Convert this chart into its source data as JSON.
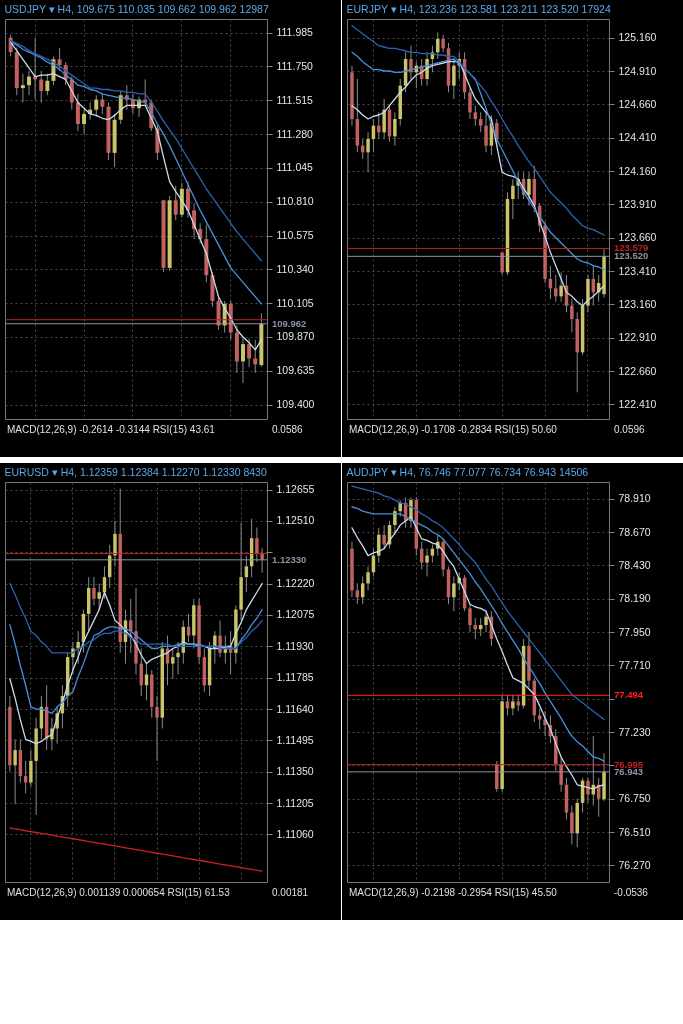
{
  "chart_data": [
    {
      "type": "candlestick",
      "title": "USDJPY ▾ H4, 109.675 110.035 109.662 109.962 12987",
      "grid": true,
      "tick_labels": "y",
      "categories": [
        null,
        null,
        null,
        null,
        null,
        null,
        null,
        null,
        null,
        null,
        null,
        null,
        null,
        null,
        null,
        null,
        null,
        null,
        null,
        null,
        null,
        null,
        null,
        null,
        null,
        null,
        null,
        null,
        null,
        null,
        null,
        null,
        null,
        null,
        null,
        null,
        null,
        null,
        null,
        null,
        null,
        null
      ],
      "ohlc": [
        [
          111.95,
          111.97,
          111.82,
          111.85
        ],
        [
          111.85,
          111.88,
          111.55,
          111.6
        ],
        [
          111.6,
          111.7,
          111.5,
          111.62
        ],
        [
          111.62,
          111.72,
          111.55,
          111.68
        ],
        [
          111.68,
          111.95,
          111.52,
          111.66
        ],
        [
          111.66,
          111.72,
          111.5,
          111.58
        ],
        [
          111.58,
          111.7,
          111.55,
          111.65
        ],
        [
          111.65,
          111.82,
          111.62,
          111.8
        ],
        [
          111.8,
          111.88,
          111.72,
          111.76
        ],
        [
          111.76,
          111.78,
          111.62,
          111.66
        ],
        [
          111.66,
          111.68,
          111.45,
          111.5
        ],
        [
          111.5,
          111.56,
          111.3,
          111.35
        ],
        [
          111.35,
          111.45,
          111.28,
          111.42
        ],
        [
          111.42,
          111.5,
          111.38,
          111.45
        ],
        [
          111.45,
          111.55,
          111.4,
          111.52
        ],
        [
          111.52,
          111.56,
          111.42,
          111.47
        ],
        [
          111.47,
          111.5,
          111.1,
          111.15
        ],
        [
          111.15,
          111.42,
          111.05,
          111.38
        ],
        [
          111.38,
          111.58,
          111.35,
          111.55
        ],
        [
          111.55,
          111.62,
          111.45,
          111.52
        ],
        [
          111.52,
          111.56,
          111.42,
          111.46
        ],
        [
          111.46,
          111.54,
          111.4,
          111.52
        ],
        [
          111.52,
          111.66,
          111.48,
          111.5
        ],
        [
          111.5,
          111.52,
          111.3,
          111.32
        ],
        [
          111.32,
          111.35,
          111.1,
          111.15
        ],
        [
          110.82,
          110.82,
          110.32,
          110.35
        ],
        [
          110.35,
          110.85,
          110.33,
          110.82
        ],
        [
          110.82,
          110.92,
          110.68,
          110.72
        ],
        [
          110.72,
          110.94,
          110.7,
          110.9
        ],
        [
          110.9,
          110.95,
          110.7,
          110.75
        ],
        [
          110.75,
          110.8,
          110.55,
          110.62
        ],
        [
          110.62,
          110.66,
          110.52,
          110.55
        ],
        [
          110.55,
          110.65,
          110.25,
          110.3
        ],
        [
          110.3,
          110.32,
          110.08,
          110.12
        ],
        [
          110.12,
          110.15,
          109.92,
          109.95
        ],
        [
          109.95,
          110.12,
          109.9,
          110.1
        ],
        [
          110.1,
          110.12,
          109.85,
          109.9
        ],
        [
          109.9,
          109.95,
          109.62,
          109.7
        ],
        [
          109.7,
          109.86,
          109.55,
          109.82
        ],
        [
          109.82,
          109.86,
          109.66,
          109.72
        ],
        [
          109.72,
          109.85,
          109.62,
          109.68
        ],
        [
          109.675,
          110.035,
          109.662,
          109.962
        ]
      ],
      "ylim": [
        109.3,
        112.08
      ],
      "yticks": [
        {
          "value": 111.985,
          "label": "111.985"
        },
        {
          "value": 111.75,
          "label": "111.750"
        },
        {
          "value": 111.515,
          "label": "111.515"
        },
        {
          "value": 111.28,
          "label": "111.280"
        },
        {
          "value": 111.045,
          "label": "111.045"
        },
        {
          "value": 110.81,
          "label": "110.810"
        },
        {
          "value": 110.575,
          "label": "110.575"
        },
        {
          "value": 110.34,
          "label": "110.340"
        },
        {
          "value": 110.105,
          "label": "110.105"
        },
        {
          "value": 109.87,
          "label": "109.870"
        },
        {
          "value": 109.635,
          "label": "109.635"
        },
        {
          "value": 109.4,
          "label": "109.400"
        }
      ],
      "series": [
        {
          "type": "line",
          "color": "#c6dcee",
          "values": [
            111.92,
            111.86,
            111.8,
            111.74,
            111.68,
            111.69,
            111.69,
            111.7,
            111.68,
            111.66,
            111.58,
            111.5,
            111.46,
            111.42,
            111.41,
            111.39,
            111.38,
            111.41,
            111.45,
            111.48,
            111.48,
            111.48,
            111.48,
            111.39,
            111.3,
            111.12,
            110.95,
            110.88,
            110.82,
            110.75,
            110.65,
            110.55,
            110.45,
            110.3,
            110.15,
            110.07,
            110,
            109.92,
            109.87,
            109.83,
            109.78,
            109.85
          ]
        },
        {
          "type": "line",
          "color": "#4a90d9",
          "values": [
            111.92,
            111.9,
            111.87,
            111.85,
            111.83,
            111.81,
            111.78,
            111.76,
            111.73,
            111.69,
            111.66,
            111.62,
            111.61,
            111.59,
            111.58,
            111.56,
            111.55,
            111.54,
            111.53,
            111.53,
            111.52,
            111.51,
            111.5,
            111.43,
            111.35,
            111.28,
            111.2,
            111.11,
            111.02,
            110.93,
            110.84,
            110.75,
            110.67,
            110.59,
            110.51,
            110.43,
            110.35,
            110.3,
            110.25,
            110.2,
            110.15,
            110.1
          ]
        },
        {
          "type": "line",
          "color": "#2a64b0",
          "values": [
            111.93,
            111.91,
            111.89,
            111.86,
            111.84,
            111.82,
            111.8,
            111.78,
            111.75,
            111.72,
            111.69,
            111.66,
            111.63,
            111.6,
            111.6,
            111.59,
            111.59,
            111.58,
            111.58,
            111.57,
            111.57,
            111.56,
            111.56,
            111.5,
            111.44,
            111.37,
            111.31,
            111.25,
            111.18,
            111.11,
            111.04,
            110.97,
            110.9,
            110.84,
            110.78,
            110.72,
            110.66,
            110.6,
            110.55,
            110.5,
            110.45,
            110.4
          ]
        }
      ],
      "ref_lines": [
        {
          "axis": "y",
          "value": 109.99,
          "label": null,
          "color": "#c02020"
        },
        {
          "axis": "y",
          "value": 109.962,
          "label": "109.962",
          "color": "#8a94a6"
        }
      ],
      "annotations": [
        "MACD(12,26,9) -0.2614 -0.3144 RSI(15) 43.61",
        "0.0586"
      ]
    },
    {
      "type": "candlestick",
      "title": "EURJPY ▾ H4, 123.236 123.581 123.211 123.520 17924",
      "grid": true,
      "tick_labels": "y",
      "categories": [
        null,
        null,
        null,
        null,
        null,
        null,
        null,
        null,
        null,
        null,
        null,
        null,
        null,
        null,
        null,
        null,
        null,
        null,
        null,
        null,
        null,
        null,
        null,
        null,
        null,
        null,
        null,
        null,
        null,
        null,
        null,
        null,
        null,
        null,
        null,
        null,
        null,
        null,
        null,
        null,
        null,
        null,
        null,
        null,
        null,
        null,
        null,
        null
      ],
      "ohlc": [
        [
          124.9,
          124.95,
          124.5,
          124.55
        ],
        [
          124.55,
          124.85,
          124.3,
          124.35
        ],
        [
          124.35,
          124.4,
          124.25,
          124.3
        ],
        [
          124.3,
          124.45,
          124.15,
          124.4
        ],
        [
          124.4,
          124.55,
          124.3,
          124.5
        ],
        [
          124.5,
          124.6,
          124.4,
          124.45
        ],
        [
          124.45,
          124.7,
          124.4,
          124.62
        ],
        [
          124.62,
          124.65,
          124.38,
          124.42
        ],
        [
          124.42,
          124.6,
          124.35,
          124.55
        ],
        [
          124.55,
          124.85,
          124.5,
          124.8
        ],
        [
          124.8,
          125.05,
          124.75,
          125
        ],
        [
          125,
          125.1,
          124.85,
          124.9
        ],
        [
          124.9,
          124.98,
          124.78,
          124.95
        ],
        [
          124.95,
          125,
          124.8,
          124.85
        ],
        [
          124.85,
          125.05,
          124.8,
          125
        ],
        [
          125,
          125.1,
          124.9,
          125.05
        ],
        [
          125.05,
          125.2,
          125,
          125.15
        ],
        [
          125.15,
          125.18,
          125.05,
          125.08
        ],
        [
          125.08,
          125.12,
          124.75,
          124.8
        ],
        [
          124.8,
          125,
          124.7,
          124.95
        ],
        [
          124.95,
          125.05,
          124.85,
          125
        ],
        [
          125,
          125.05,
          124.7,
          124.75
        ],
        [
          124.75,
          124.78,
          124.55,
          124.6
        ],
        [
          124.6,
          124.65,
          124.5,
          124.55
        ],
        [
          124.55,
          124.6,
          124.45,
          124.5
        ],
        [
          124.5,
          124.6,
          124.3,
          124.35
        ],
        [
          124.35,
          124.58,
          124.28,
          124.52
        ],
        [
          124.52,
          124.55,
          124.35,
          124.4
        ],
        [
          123.55,
          123.55,
          123.38,
          123.4
        ],
        [
          123.4,
          124,
          123.38,
          123.95
        ],
        [
          123.95,
          124.1,
          123.8,
          124.05
        ],
        [
          124.05,
          124.15,
          123.95,
          124.1
        ],
        [
          124.1,
          124.15,
          123.95,
          123.98
        ],
        [
          123.98,
          124.15,
          123.9,
          124.1
        ],
        [
          124.1,
          124.2,
          123.85,
          123.9
        ],
        [
          123.9,
          123.92,
          123.7,
          123.75
        ],
        [
          123.75,
          123.78,
          123.32,
          123.35
        ],
        [
          123.35,
          123.45,
          123.2,
          123.28
        ],
        [
          123.28,
          123.38,
          123.18,
          123.22
        ],
        [
          123.22,
          123.4,
          123.18,
          123.3
        ],
        [
          123.3,
          123.38,
          123.1,
          123.15
        ],
        [
          123.15,
          123.2,
          122.95,
          123.05
        ],
        [
          123.05,
          123.1,
          122.5,
          122.8
        ],
        [
          122.8,
          123.2,
          122.78,
          123.15
        ],
        [
          123.15,
          123.38,
          123.1,
          123.35
        ],
        [
          123.35,
          123.45,
          123.15,
          123.25
        ],
        [
          123.25,
          123.38,
          123.18,
          123.32
        ],
        [
          123.236,
          123.581,
          123.211,
          123.52
        ]
      ],
      "ylim": [
        122.3,
        125.3
      ],
      "yticks": [
        {
          "value": 125.16,
          "label": "125.160"
        },
        {
          "value": 124.91,
          "label": "124.910"
        },
        {
          "value": 124.66,
          "label": "124.660"
        },
        {
          "value": 124.41,
          "label": "124.410"
        },
        {
          "value": 124.16,
          "label": "124.160"
        },
        {
          "value": 123.91,
          "label": "123.910"
        },
        {
          "value": 123.66,
          "label": "123.660"
        },
        {
          "value": 123.41,
          "label": "123.410"
        },
        {
          "value": 123.16,
          "label": "123.160"
        },
        {
          "value": 122.91,
          "label": "122.910"
        },
        {
          "value": 122.66,
          "label": "122.660"
        },
        {
          "value": 122.41,
          "label": "122.410"
        }
      ],
      "series": [
        {
          "type": "line",
          "color": "#c6dcee",
          "values": [
            124.65,
            124.62,
            124.58,
            124.55,
            124.57,
            124.58,
            124.6,
            124.65,
            124.7,
            124.75,
            124.79,
            124.84,
            124.88,
            124.9,
            124.93,
            124.95,
            124.96,
            124.97,
            124.98,
            124.98,
            124.98,
            124.89,
            124.79,
            124.7,
            124.65,
            124.6,
            124.55,
            124.35,
            124.15,
            124.13,
            124.12,
            124.1,
            124.03,
            123.97,
            123.9,
            123.78,
            123.67,
            123.55,
            123.45,
            123.35,
            123.25,
            123.22,
            123.18,
            123.15,
            123.19,
            123.22,
            123.26,
            123.3
          ]
        },
        {
          "type": "line",
          "color": "#4a90d9",
          "values": [
            125.05,
            125.02,
            124.98,
            124.95,
            124.92,
            124.92,
            124.91,
            124.91,
            124.9,
            124.9,
            124.91,
            124.92,
            124.93,
            124.94,
            124.95,
            124.96,
            124.97,
            124.98,
            124.99,
            125,
            124.96,
            124.93,
            124.89,
            124.85,
            124.74,
            124.63,
            124.51,
            124.4,
            124.32,
            124.24,
            124.16,
            124.08,
            124,
            123.94,
            123.88,
            123.82,
            123.76,
            123.7,
            123.66,
            123.62,
            123.58,
            123.54,
            123.5,
            123.48,
            123.47,
            123.45,
            123.44,
            123.42
          ]
        },
        {
          "type": "line",
          "color": "#2a64b0",
          "values": [
            125.25,
            125.22,
            125.19,
            125.16,
            125.13,
            125.1,
            125.09,
            125.08,
            125.08,
            125.07,
            125.06,
            125.05,
            125.05,
            125.04,
            125.04,
            125.04,
            125.03,
            125.03,
            125.02,
            125.02,
            124.98,
            124.93,
            124.89,
            124.84,
            124.8,
            124.75,
            124.68,
            124.62,
            124.55,
            124.48,
            124.42,
            124.35,
            124.29,
            124.23,
            124.18,
            124.12,
            124.06,
            124,
            123.96,
            123.92,
            123.88,
            123.83,
            123.79,
            123.75,
            123.73,
            123.72,
            123.7,
            123.68
          ]
        }
      ],
      "ref_lines": [
        {
          "axis": "y",
          "value": 123.579,
          "label": "123.579",
          "color": "#c02020"
        },
        {
          "axis": "y",
          "value": 123.52,
          "label": "123.520",
          "color": "#8a94a6"
        }
      ],
      "annotations": [
        "MACD(12,26,9) -0.1708 -0.2834 RSI(15) 50.60",
        "0.0596"
      ]
    },
    {
      "type": "candlestick",
      "title": "EURUSD ▾ H4, 1.12359 1.12384 1.12270 1.12330 8430",
      "grid": true,
      "tick_labels": "y",
      "categories": [
        null,
        null,
        null,
        null,
        null,
        null,
        null,
        null,
        null,
        null,
        null,
        null,
        null,
        null,
        null,
        null,
        null,
        null,
        null,
        null,
        null,
        null,
        null,
        null,
        null,
        null,
        null,
        null,
        null,
        null,
        null,
        null,
        null,
        null,
        null,
        null,
        null,
        null,
        null,
        null,
        null,
        null,
        null,
        null,
        null,
        null,
        null,
        null,
        null
      ],
      "ohlc": [
        [
          1.1165,
          1.117,
          1.1135,
          1.1138
        ],
        [
          1.1138,
          1.115,
          1.112,
          1.1145
        ],
        [
          1.1145,
          1.115,
          1.113,
          1.1133
        ],
        [
          1.1133,
          1.114,
          1.1125,
          1.113
        ],
        [
          1.113,
          1.1145,
          1.1128,
          1.114
        ],
        [
          1.114,
          1.116,
          1.1115,
          1.1155
        ],
        [
          1.1155,
          1.117,
          1.115,
          1.1165
        ],
        [
          1.1165,
          1.1175,
          1.1145,
          1.115
        ],
        [
          1.115,
          1.116,
          1.1145,
          1.1155
        ],
        [
          1.1155,
          1.1165,
          1.1148,
          1.1162
        ],
        [
          1.1162,
          1.1175,
          1.1155,
          1.117
        ],
        [
          1.117,
          1.119,
          1.1165,
          1.1188
        ],
        [
          1.1188,
          1.1195,
          1.118,
          1.1192
        ],
        [
          1.1192,
          1.12,
          1.1185,
          1.1195
        ],
        [
          1.1195,
          1.121,
          1.119,
          1.1208
        ],
        [
          1.1208,
          1.1225,
          1.12,
          1.122
        ],
        [
          1.122,
          1.1225,
          1.1212,
          1.1215
        ],
        [
          1.1215,
          1.1222,
          1.121,
          1.1218
        ],
        [
          1.1218,
          1.123,
          1.1215,
          1.1225
        ],
        [
          1.1225,
          1.124,
          1.122,
          1.1235
        ],
        [
          1.1235,
          1.1251,
          1.123,
          1.1245
        ],
        [
          1.1245,
          1.1266,
          1.119,
          1.1195
        ],
        [
          1.1195,
          1.121,
          1.1185,
          1.1205
        ],
        [
          1.1205,
          1.1215,
          1.119,
          1.12
        ],
        [
          1.12,
          1.122,
          1.118,
          1.1185
        ],
        [
          1.1185,
          1.1192,
          1.117,
          1.1175
        ],
        [
          1.1175,
          1.1185,
          1.1168,
          1.118
        ],
        [
          1.118,
          1.1182,
          1.116,
          1.1165
        ],
        [
          1.1165,
          1.117,
          1.114,
          1.116
        ],
        [
          1.116,
          1.1195,
          1.1155,
          1.1192
        ],
        [
          1.1192,
          1.1198,
          1.1175,
          1.1185
        ],
        [
          1.1185,
          1.1192,
          1.1178,
          1.1188
        ],
        [
          1.1188,
          1.1195,
          1.118,
          1.119
        ],
        [
          1.119,
          1.1205,
          1.1185,
          1.1202
        ],
        [
          1.1202,
          1.1208,
          1.1195,
          1.1198
        ],
        [
          1.1198,
          1.1215,
          1.1192,
          1.1212
        ],
        [
          1.1212,
          1.1215,
          1.1185,
          1.1188
        ],
        [
          1.1188,
          1.1192,
          1.1172,
          1.1175
        ],
        [
          1.1175,
          1.1195,
          1.117,
          1.1192
        ],
        [
          1.1192,
          1.12,
          1.1185,
          1.1198
        ],
        [
          1.1198,
          1.1205,
          1.1188,
          1.119
        ],
        [
          1.119,
          1.1198,
          1.1185,
          1.1193
        ],
        [
          1.1193,
          1.12,
          1.118,
          1.119
        ],
        [
          1.119,
          1.1212,
          1.1185,
          1.121
        ],
        [
          1.121,
          1.125,
          1.1205,
          1.1225
        ],
        [
          1.1225,
          1.1235,
          1.1218,
          1.123
        ],
        [
          1.123,
          1.1252,
          1.1225,
          1.1243
        ],
        [
          1.1243,
          1.1248,
          1.1232,
          1.12359
        ],
        [
          1.12359,
          1.12384,
          1.1227,
          1.1233
        ]
      ],
      "ylim": [
        1.1084,
        1.1269
      ],
      "yticks": [
        {
          "value": 1.12655,
          "label": "1.12655"
        },
        {
          "value": 1.1251,
          "label": "1.12510"
        },
        {
          "value": 1.12365,
          "label": null
        },
        {
          "value": 1.1222,
          "label": "1.12220"
        },
        {
          "value": 1.12075,
          "label": "1.12075"
        },
        {
          "value": 1.1193,
          "label": "1.11930"
        },
        {
          "value": 1.11785,
          "label": "1.11785"
        },
        {
          "value": 1.1164,
          "label": "1.11640"
        },
        {
          "value": 1.11495,
          "label": "1.11495"
        },
        {
          "value": 1.1135,
          "label": "1.11350"
        },
        {
          "value": 1.11205,
          "label": "1.11205"
        },
        {
          "value": 1.1106,
          "label": "1.11060"
        }
      ],
      "series": [
        {
          "type": "line",
          "color": "#c6dcee",
          "values": [
            1.1178,
            1.1169,
            1.1159,
            1.115,
            1.1149,
            1.1148,
            1.1149,
            1.1151,
            1.1152,
            1.116,
            1.1167,
            1.1175,
            1.1182,
            1.1188,
            1.1195,
            1.12,
            1.1205,
            1.121,
            1.1218,
            1.1212,
            1.1205,
            1.1203,
            1.12,
            1.1198,
            1.1194,
            1.1189,
            1.1185,
            1.1187,
            1.1188,
            1.1189,
            1.119,
            1.1192,
            1.1193,
            1.1195,
            1.1194,
            1.1194,
            1.1193,
            1.1193,
            1.1192,
            1.1192,
            1.1192,
            1.1193,
            1.1193,
            1.1199,
            1.1204,
            1.121,
            1.1214,
            1.1218,
            1.1222
          ]
        },
        {
          "type": "line",
          "color": "#4a90d9",
          "values": [
            1.1203,
            1.1194,
            1.1184,
            1.1175,
            1.1165,
            1.1164,
            1.1164,
            1.1163,
            1.1162,
            1.1165,
            1.1167,
            1.117,
            1.1172,
            1.1179,
            1.1185,
            1.1192,
            1.1198,
            1.1199,
            1.1201,
            1.1202,
            1.1202,
            1.1201,
            1.1201,
            1.12,
            1.1198,
            1.1196,
            1.1194,
            1.1192,
            1.1192,
            1.1193,
            1.1193,
            1.1193,
            1.1194,
            1.1194,
            1.1194,
            1.1194,
            1.1194,
            1.1193,
            1.1193,
            1.1193,
            1.1193,
            1.1193,
            1.1192,
            1.1192,
            1.1196,
            1.1199,
            1.1203,
            1.1206,
            1.121
          ]
        },
        {
          "type": "line",
          "color": "#2a64b0",
          "values": [
            1.1222,
            1.1217,
            1.1211,
            1.1206,
            1.12,
            1.1198,
            1.1195,
            1.1193,
            1.119,
            1.119,
            1.119,
            1.119,
            1.119,
            1.1192,
            1.1193,
            1.1195,
            1.1196,
            1.1198,
            1.1199,
            1.1199,
            1.12,
            1.12,
            1.1199,
            1.1197,
            1.1196,
            1.1194,
            1.1194,
            1.1194,
            1.1194,
            1.1194,
            1.1194,
            1.1193,
            1.1193,
            1.1193,
            1.1193,
            1.1193,
            1.1193,
            1.1193,
            1.1193,
            1.1193,
            1.1192,
            1.1192,
            1.1192,
            1.1192,
            1.1195,
            1.1197,
            1.12,
            1.1202,
            1.1205
          ]
        },
        {
          "type": "line",
          "color": "#d02020",
          "values": [
            1.1109,
            1.11086,
            1.11082,
            1.11077,
            1.11073,
            1.11069,
            1.11065,
            1.11061,
            1.11057,
            1.11052,
            1.11048,
            1.11044,
            1.1104,
            1.11036,
            1.11032,
            1.11027,
            1.11023,
            1.11019,
            1.11015,
            1.11011,
            1.11007,
            1.11002,
            1.10998,
            1.10994,
            1.1099,
            1.10986,
            1.10982,
            1.10977,
            1.10973,
            1.10969,
            1.10965,
            1.10961,
            1.10957,
            1.10952,
            1.10948,
            1.10944,
            1.1094,
            1.10936,
            1.10932,
            1.10927,
            1.10923,
            1.10919,
            1.10915,
            1.10911,
            1.10907,
            1.10902,
            1.10898,
            1.10894,
            1.1089
          ]
        }
      ],
      "ref_lines": [
        {
          "axis": "y",
          "value": 1.12359,
          "label": null,
          "color": "#c02020"
        },
        {
          "axis": "y",
          "value": 1.1233,
          "label": "1.12330",
          "color": "#8a94a6"
        }
      ],
      "annotations": [
        "MACD(12,26,9) 0.001139 0.000654 RSI(15) 61.53",
        "0.00181"
      ]
    },
    {
      "type": "candlestick",
      "title": "AUDJPY ▾ H4, 76.746 77.077 76.734 76.943 14506",
      "grid": true,
      "tick_labels": "y",
      "categories": [
        null,
        null,
        null,
        null,
        null,
        null,
        null,
        null,
        null,
        null,
        null,
        null,
        null,
        null,
        null,
        null,
        null,
        null,
        null,
        null,
        null,
        null,
        null,
        null,
        null,
        null,
        null,
        null,
        null,
        null,
        null,
        null,
        null,
        null,
        null,
        null,
        null,
        null,
        null,
        null,
        null,
        null,
        null,
        null,
        null,
        null,
        null,
        null
      ],
      "ohlc": [
        [
          78.55,
          78.6,
          78.2,
          78.25
        ],
        [
          78.25,
          78.3,
          78.15,
          78.2
        ],
        [
          78.2,
          78.35,
          78.15,
          78.3
        ],
        [
          78.3,
          78.42,
          78.25,
          78.38
        ],
        [
          78.38,
          78.55,
          78.35,
          78.5
        ],
        [
          78.5,
          78.7,
          78.45,
          78.65
        ],
        [
          78.65,
          78.72,
          78.55,
          78.58
        ],
        [
          78.58,
          78.75,
          78.55,
          78.72
        ],
        [
          78.72,
          78.85,
          78.65,
          78.82
        ],
        [
          78.82,
          78.9,
          78.78,
          78.88
        ],
        [
          78.88,
          78.92,
          78.7,
          78.75
        ],
        [
          78.75,
          78.92,
          78.7,
          78.9
        ],
        [
          78.9,
          78.92,
          78.5,
          78.55
        ],
        [
          78.55,
          78.6,
          78.4,
          78.45
        ],
        [
          78.45,
          78.55,
          78.35,
          78.5
        ],
        [
          78.5,
          78.58,
          78.45,
          78.55
        ],
        [
          78.55,
          78.65,
          78.5,
          78.6
        ],
        [
          78.6,
          78.62,
          78.35,
          78.4
        ],
        [
          78.4,
          78.42,
          78.15,
          78.2
        ],
        [
          78.2,
          78.35,
          78.1,
          78.3
        ],
        [
          78.3,
          78.38,
          78.25,
          78.34
        ],
        [
          78.34,
          78.36,
          78.1,
          78.12
        ],
        [
          78.12,
          78.15,
          77.95,
          78
        ],
        [
          78,
          78.05,
          77.9,
          77.97
        ],
        [
          77.97,
          78.05,
          77.92,
          78
        ],
        [
          78,
          78.1,
          77.95,
          78.06
        ],
        [
          78.06,
          78.1,
          77.85,
          77.9
        ],
        [
          77,
          77.02,
          76.8,
          76.82
        ],
        [
          76.82,
          77.5,
          76.8,
          77.45
        ],
        [
          77.45,
          77.5,
          77.35,
          77.4
        ],
        [
          77.4,
          77.5,
          77.35,
          77.45
        ],
        [
          77.45,
          77.5,
          77.38,
          77.42
        ],
        [
          77.42,
          77.9,
          77.4,
          77.85
        ],
        [
          77.85,
          77.95,
          77.55,
          77.6
        ],
        [
          77.6,
          77.62,
          77.3,
          77.35
        ],
        [
          77.35,
          77.4,
          77.25,
          77.32
        ],
        [
          77.32,
          77.38,
          77.2,
          77.28
        ],
        [
          77.28,
          77.35,
          77.15,
          77.2
        ],
        [
          77.2,
          77.25,
          76.95,
          77
        ],
        [
          77,
          77.05,
          76.8,
          76.85
        ],
        [
          76.85,
          76.9,
          76.6,
          76.65
        ],
        [
          76.65,
          76.7,
          76.42,
          76.5
        ],
        [
          76.5,
          76.75,
          76.4,
          76.72
        ],
        [
          76.72,
          76.9,
          76.65,
          76.88
        ],
        [
          76.88,
          76.9,
          76.72,
          76.78
        ],
        [
          76.78,
          77.2,
          76.7,
          76.85
        ],
        [
          76.85,
          76.9,
          76.62,
          76.75
        ],
        [
          76.746,
          77.077,
          76.734,
          76.943
        ]
      ],
      "ylim": [
        76.15,
        79.03
      ],
      "yticks": [
        {
          "value": 78.91,
          "label": "78.910"
        },
        {
          "value": 78.67,
          "label": "78.670"
        },
        {
          "value": 78.43,
          "label": "78.430"
        },
        {
          "value": 78.19,
          "label": "78.190"
        },
        {
          "value": 77.95,
          "label": "77.950"
        },
        {
          "value": 77.71,
          "label": "77.710"
        },
        {
          "value": 77.47,
          "label": null
        },
        {
          "value": 77.23,
          "label": "77.230"
        },
        {
          "value": 76.99,
          "label": null
        },
        {
          "value": 76.75,
          "label": "76.750"
        },
        {
          "value": 76.51,
          "label": "76.510"
        },
        {
          "value": 76.27,
          "label": "76.270"
        }
      ],
      "series": [
        {
          "type": "line",
          "color": "#c6dcee",
          "values": [
            78.7,
            78.63,
            78.57,
            78.5,
            78.52,
            78.53,
            78.55,
            78.61,
            78.66,
            78.72,
            78.75,
            78.78,
            78.7,
            78.62,
            78.61,
            78.59,
            78.58,
            78.53,
            78.47,
            78.42,
            78.33,
            78.24,
            78.15,
            78.13,
            78.12,
            78.1,
            78,
            77.9,
            77.81,
            77.71,
            77.62,
            77.6,
            77.58,
            77.54,
            77.5,
            77.42,
            77.33,
            77.25,
            77.15,
            77.05,
            76.98,
            76.92,
            76.85,
            76.84,
            76.83,
            76.82,
            76.84,
            76.85
          ]
        },
        {
          "type": "line",
          "color": "#4a90d9",
          "values": [
            78.85,
            78.84,
            78.82,
            78.81,
            78.8,
            78.8,
            78.8,
            78.8,
            78.8,
            78.8,
            78.78,
            78.76,
            78.74,
            78.72,
            78.7,
            78.67,
            78.65,
            78.62,
            78.57,
            78.52,
            78.47,
            78.42,
            78.37,
            78.31,
            78.26,
            78.2,
            78.14,
            78.08,
            78.01,
            77.95,
            77.89,
            77.83,
            77.76,
            77.7,
            77.64,
            77.58,
            77.51,
            77.45,
            77.39,
            77.33,
            77.26,
            77.2,
            77.16,
            77.13,
            77.09,
            77.05,
            77.04,
            77.02
          ]
        },
        {
          "type": "line",
          "color": "#2a64b0",
          "values": [
            79,
            78.99,
            78.98,
            78.97,
            78.96,
            78.95,
            78.93,
            78.92,
            78.9,
            78.88,
            78.87,
            78.85,
            78.83,
            78.8,
            78.78,
            78.75,
            78.73,
            78.7,
            78.66,
            78.62,
            78.58,
            78.53,
            78.49,
            78.45,
            78.39,
            78.33,
            78.28,
            78.22,
            78.16,
            78.1,
            78.05,
            78,
            77.95,
            77.9,
            77.85,
            77.8,
            77.75,
            77.7,
            77.65,
            77.6,
            77.55,
            77.5,
            77.47,
            77.44,
            77.41,
            77.38,
            77.35,
            77.32
          ]
        }
      ],
      "ref_lines": [
        {
          "axis": "y",
          "value": 77.494,
          "label": "77.494",
          "color": "#ff2020"
        },
        {
          "axis": "y",
          "value": 76.995,
          "label": "76.995",
          "color": "#c02020"
        },
        {
          "axis": "y",
          "value": 76.943,
          "label": "76.943",
          "color": "#8a94a6"
        }
      ],
      "annotations": [
        "MACD(12,26,9) -0.2198 -0.2954 RSI(15) 45.50",
        "-0.0536"
      ]
    }
  ]
}
